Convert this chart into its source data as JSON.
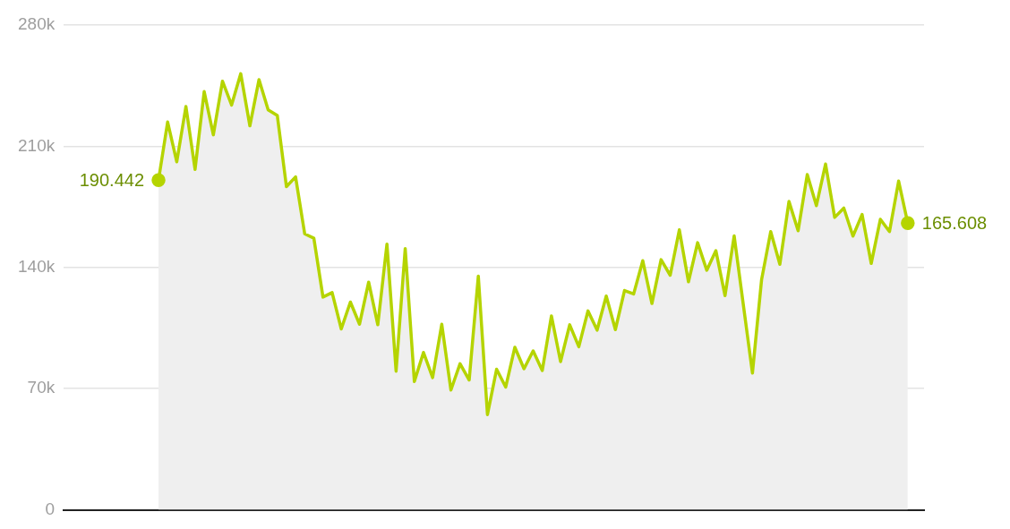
{
  "chart_data": {
    "type": "area",
    "categories": [
      null,
      null,
      null,
      null,
      null,
      null,
      null,
      null,
      null,
      null,
      null,
      null,
      null,
      null,
      null,
      null,
      null,
      null,
      null,
      null,
      null,
      null,
      null,
      null,
      null,
      null,
      null,
      null,
      null,
      null,
      null,
      null,
      null,
      null,
      null,
      null,
      null,
      null,
      null,
      null,
      null,
      null,
      null,
      null,
      null,
      null,
      null,
      null,
      null,
      null,
      null,
      null,
      null,
      null,
      null,
      null,
      null,
      null,
      null,
      null,
      null,
      null,
      null,
      null,
      null,
      null,
      null,
      null,
      null,
      null,
      null,
      null,
      null,
      null,
      null,
      null,
      null,
      null,
      null,
      null,
      null,
      null,
      null
    ],
    "series": [
      {
        "color": "#b5d400",
        "values": [
          190442,
          224000,
          201000,
          233000,
          196600,
          241600,
          216600,
          247600,
          233800,
          251900,
          221800,
          248500,
          231000,
          227800,
          186700,
          192300,
          159400,
          156900,
          122900,
          125500,
          104500,
          120000,
          107200,
          131500,
          106900,
          153500,
          80100,
          150900,
          74100,
          90900,
          76400,
          107200,
          69200,
          84400,
          75000,
          135000,
          55000,
          81200,
          70900,
          93900,
          81500,
          91800,
          80500,
          112000,
          85600,
          106900,
          94200,
          114900,
          103800,
          123500,
          104100,
          126700,
          124700,
          143900,
          119200,
          144500,
          135500,
          161700,
          131700,
          154300,
          138400,
          149700,
          123700,
          158200,
          118600,
          79000,
          132900,
          160700,
          141800,
          178100,
          161200,
          193700,
          175700,
          199700,
          168900,
          174300,
          158100,
          170600,
          142300,
          167800,
          160700,
          189900,
          165608
        ],
        "value_labels": [
          "190.442",
          null,
          null,
          null,
          null,
          null,
          null,
          null,
          null,
          null,
          null,
          null,
          null,
          null,
          null,
          null,
          null,
          null,
          null,
          null,
          null,
          null,
          null,
          null,
          null,
          null,
          null,
          null,
          null,
          null,
          null,
          null,
          null,
          null,
          null,
          null,
          null,
          null,
          null,
          null,
          null,
          null,
          null,
          null,
          null,
          null,
          null,
          null,
          null,
          null,
          null,
          null,
          null,
          null,
          null,
          null,
          null,
          null,
          null,
          null,
          null,
          null,
          null,
          null,
          null,
          null,
          null,
          null,
          null,
          null,
          null,
          null,
          null,
          null,
          null,
          null,
          null,
          null,
          null,
          null,
          null,
          null,
          "165.608"
        ]
      }
    ],
    "ylim": [
      0,
      280000
    ],
    "yticks": [
      {
        "value": 0,
        "label": "0"
      },
      {
        "value": 70000,
        "label": "70k"
      },
      {
        "value": 140000,
        "label": "140k"
      },
      {
        "value": 210000,
        "label": "210k"
      },
      {
        "value": 280000,
        "label": "280k"
      }
    ],
    "grid": "y",
    "tick_labels": "y"
  }
}
